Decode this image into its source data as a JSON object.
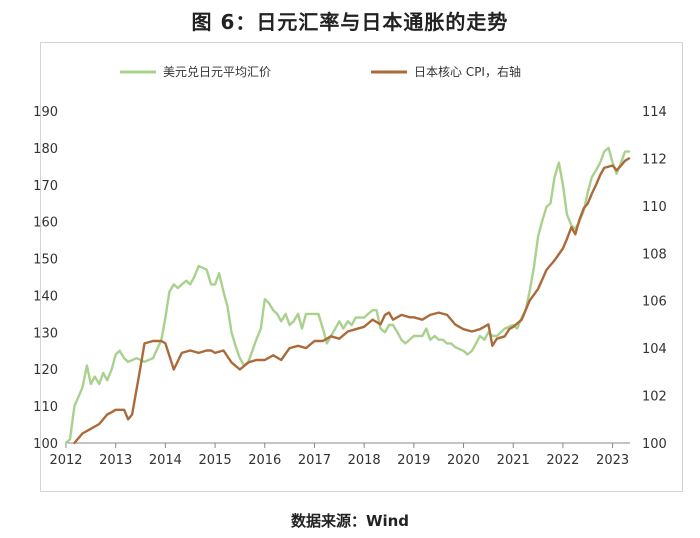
{
  "title": "图 6：日元汇率与日本通胀的走势",
  "source": "数据来源：Wind",
  "chart_data": {
    "type": "line",
    "x_ticks": [
      "2012",
      "2013",
      "2014",
      "2015",
      "2016",
      "2017",
      "2018",
      "2019",
      "2020",
      "2021",
      "2022",
      "2023"
    ],
    "xlim": [
      2012.0,
      2023.35
    ],
    "y_left": {
      "min": 100,
      "max": 190,
      "ticks": [
        100,
        110,
        120,
        130,
        140,
        150,
        160,
        170,
        180,
        190
      ]
    },
    "y_right": {
      "min": 100,
      "max": 114,
      "ticks": [
        100,
        102,
        104,
        106,
        108,
        110,
        112,
        114
      ]
    },
    "grid": false,
    "legend_position": "top",
    "series": [
      {
        "name": "美元兑日元平均汇价",
        "axis": "left",
        "color": "#a9d18e",
        "points": [
          [
            2012.0,
            100
          ],
          [
            2012.08,
            101
          ],
          [
            2012.17,
            110
          ],
          [
            2012.33,
            115
          ],
          [
            2012.42,
            121
          ],
          [
            2012.5,
            116
          ],
          [
            2012.58,
            118
          ],
          [
            2012.67,
            116
          ],
          [
            2012.75,
            119
          ],
          [
            2012.83,
            117
          ],
          [
            2012.92,
            120
          ],
          [
            2013.0,
            124
          ],
          [
            2013.08,
            125
          ],
          [
            2013.17,
            123
          ],
          [
            2013.25,
            122
          ],
          [
            2013.42,
            123
          ],
          [
            2013.58,
            122
          ],
          [
            2013.75,
            123
          ],
          [
            2013.92,
            128
          ],
          [
            2014.0,
            134
          ],
          [
            2014.08,
            141
          ],
          [
            2014.17,
            143
          ],
          [
            2014.25,
            142
          ],
          [
            2014.33,
            143
          ],
          [
            2014.42,
            144
          ],
          [
            2014.5,
            143
          ],
          [
            2014.58,
            145
          ],
          [
            2014.67,
            148
          ],
          [
            2014.83,
            147
          ],
          [
            2014.92,
            143
          ],
          [
            2015.0,
            143
          ],
          [
            2015.08,
            146
          ],
          [
            2015.17,
            141
          ],
          [
            2015.25,
            137
          ],
          [
            2015.33,
            130
          ],
          [
            2015.42,
            126
          ],
          [
            2015.5,
            123
          ],
          [
            2015.58,
            121
          ],
          [
            2015.67,
            122
          ],
          [
            2015.83,
            128
          ],
          [
            2015.92,
            131
          ],
          [
            2016.0,
            139
          ],
          [
            2016.08,
            138
          ],
          [
            2016.17,
            136
          ],
          [
            2016.25,
            135
          ],
          [
            2016.33,
            133
          ],
          [
            2016.42,
            135
          ],
          [
            2016.5,
            132
          ],
          [
            2016.58,
            133
          ],
          [
            2016.67,
            135
          ],
          [
            2016.75,
            131
          ],
          [
            2016.83,
            135
          ],
          [
            2017.0,
            135
          ],
          [
            2017.08,
            135
          ],
          [
            2017.17,
            131
          ],
          [
            2017.25,
            127
          ],
          [
            2017.33,
            129
          ],
          [
            2017.42,
            131
          ],
          [
            2017.5,
            133
          ],
          [
            2017.58,
            131
          ],
          [
            2017.67,
            133
          ],
          [
            2017.75,
            132
          ],
          [
            2017.83,
            134
          ],
          [
            2018.0,
            134
          ],
          [
            2018.08,
            135
          ],
          [
            2018.17,
            136
          ],
          [
            2018.25,
            136
          ],
          [
            2018.33,
            131
          ],
          [
            2018.42,
            130
          ],
          [
            2018.5,
            132
          ],
          [
            2018.58,
            132
          ],
          [
            2018.67,
            130
          ],
          [
            2018.75,
            128
          ],
          [
            2018.83,
            127
          ],
          [
            2019.0,
            129
          ],
          [
            2019.08,
            129
          ],
          [
            2019.17,
            129
          ],
          [
            2019.25,
            131
          ],
          [
            2019.33,
            128
          ],
          [
            2019.42,
            129
          ],
          [
            2019.5,
            128
          ],
          [
            2019.58,
            128
          ],
          [
            2019.67,
            127
          ],
          [
            2019.75,
            127
          ],
          [
            2019.83,
            126
          ],
          [
            2020.0,
            125
          ],
          [
            2020.08,
            124
          ],
          [
            2020.17,
            125
          ],
          [
            2020.25,
            127
          ],
          [
            2020.33,
            129
          ],
          [
            2020.42,
            128
          ],
          [
            2020.5,
            130
          ],
          [
            2020.58,
            129
          ],
          [
            2020.67,
            129
          ],
          [
            2020.75,
            130
          ],
          [
            2020.83,
            131
          ],
          [
            2021.0,
            132
          ],
          [
            2021.08,
            131
          ],
          [
            2021.17,
            134
          ],
          [
            2021.25,
            136
          ],
          [
            2021.33,
            141
          ],
          [
            2021.42,
            148
          ],
          [
            2021.5,
            156
          ],
          [
            2021.58,
            160
          ],
          [
            2021.67,
            164
          ],
          [
            2021.75,
            165
          ],
          [
            2021.83,
            172
          ],
          [
            2021.92,
            176
          ],
          [
            2022.0,
            170
          ],
          [
            2022.08,
            162
          ],
          [
            2022.17,
            159
          ],
          [
            2022.25,
            158
          ],
          [
            2022.33,
            160
          ],
          [
            2022.42,
            163
          ],
          [
            2022.5,
            168
          ],
          [
            2022.58,
            172
          ],
          [
            2022.67,
            174
          ],
          [
            2022.75,
            176
          ],
          [
            2022.83,
            179
          ],
          [
            2022.92,
            180
          ],
          [
            2023.0,
            176
          ],
          [
            2023.08,
            173
          ],
          [
            2023.17,
            176
          ],
          [
            2023.25,
            179
          ],
          [
            2023.33,
            179
          ]
        ]
      },
      {
        "name": "日本核心 CPI，右轴",
        "axis": "right",
        "color": "#ab6a3a",
        "points": [
          [
            2012.17,
            100
          ],
          [
            2012.33,
            100.4
          ],
          [
            2012.5,
            100.6
          ],
          [
            2012.67,
            100.8
          ],
          [
            2012.83,
            101.2
          ],
          [
            2012.92,
            101.3
          ],
          [
            2013.0,
            101.4
          ],
          [
            2013.17,
            101.4
          ],
          [
            2013.25,
            101.0
          ],
          [
            2013.33,
            101.2
          ],
          [
            2013.5,
            103.2
          ],
          [
            2013.58,
            104.2
          ],
          [
            2013.75,
            104.3
          ],
          [
            2013.92,
            104.3
          ],
          [
            2014.0,
            104.2
          ],
          [
            2014.17,
            103.1
          ],
          [
            2014.33,
            103.8
          ],
          [
            2014.5,
            103.9
          ],
          [
            2014.67,
            103.8
          ],
          [
            2014.83,
            103.9
          ],
          [
            2014.92,
            103.9
          ],
          [
            2015.0,
            103.8
          ],
          [
            2015.17,
            103.9
          ],
          [
            2015.33,
            103.4
          ],
          [
            2015.5,
            103.1
          ],
          [
            2015.67,
            103.4
          ],
          [
            2015.83,
            103.5
          ],
          [
            2016.0,
            103.5
          ],
          [
            2016.17,
            103.7
          ],
          [
            2016.33,
            103.5
          ],
          [
            2016.5,
            104.0
          ],
          [
            2016.67,
            104.1
          ],
          [
            2016.83,
            104.0
          ],
          [
            2017.0,
            104.3
          ],
          [
            2017.17,
            104.3
          ],
          [
            2017.33,
            104.5
          ],
          [
            2017.5,
            104.4
          ],
          [
            2017.67,
            104.7
          ],
          [
            2017.83,
            104.8
          ],
          [
            2018.0,
            104.9
          ],
          [
            2018.17,
            105.2
          ],
          [
            2018.33,
            105.0
          ],
          [
            2018.42,
            105.4
          ],
          [
            2018.5,
            105.5
          ],
          [
            2018.58,
            105.2
          ],
          [
            2018.75,
            105.4
          ],
          [
            2018.92,
            105.3
          ],
          [
            2019.0,
            105.3
          ],
          [
            2019.17,
            105.2
          ],
          [
            2019.33,
            105.4
          ],
          [
            2019.5,
            105.5
          ],
          [
            2019.67,
            105.4
          ],
          [
            2019.83,
            105.0
          ],
          [
            2020.0,
            104.8
          ],
          [
            2020.17,
            104.7
          ],
          [
            2020.33,
            104.8
          ],
          [
            2020.5,
            105.0
          ],
          [
            2020.58,
            104.1
          ],
          [
            2020.67,
            104.4
          ],
          [
            2020.83,
            104.5
          ],
          [
            2020.92,
            104.8
          ],
          [
            2021.0,
            104.9
          ],
          [
            2021.17,
            105.2
          ],
          [
            2021.33,
            106.0
          ],
          [
            2021.5,
            106.5
          ],
          [
            2021.67,
            107.3
          ],
          [
            2021.83,
            107.7
          ],
          [
            2022.0,
            108.2
          ],
          [
            2022.08,
            108.6
          ],
          [
            2022.17,
            109.1
          ],
          [
            2022.25,
            108.8
          ],
          [
            2022.33,
            109.4
          ],
          [
            2022.42,
            109.9
          ],
          [
            2022.5,
            110.1
          ],
          [
            2022.58,
            110.5
          ],
          [
            2022.67,
            110.9
          ],
          [
            2022.75,
            111.3
          ],
          [
            2022.83,
            111.6
          ],
          [
            2023.0,
            111.7
          ],
          [
            2023.08,
            111.5
          ],
          [
            2023.17,
            111.7
          ],
          [
            2023.25,
            111.9
          ],
          [
            2023.33,
            112.0
          ]
        ]
      }
    ]
  }
}
